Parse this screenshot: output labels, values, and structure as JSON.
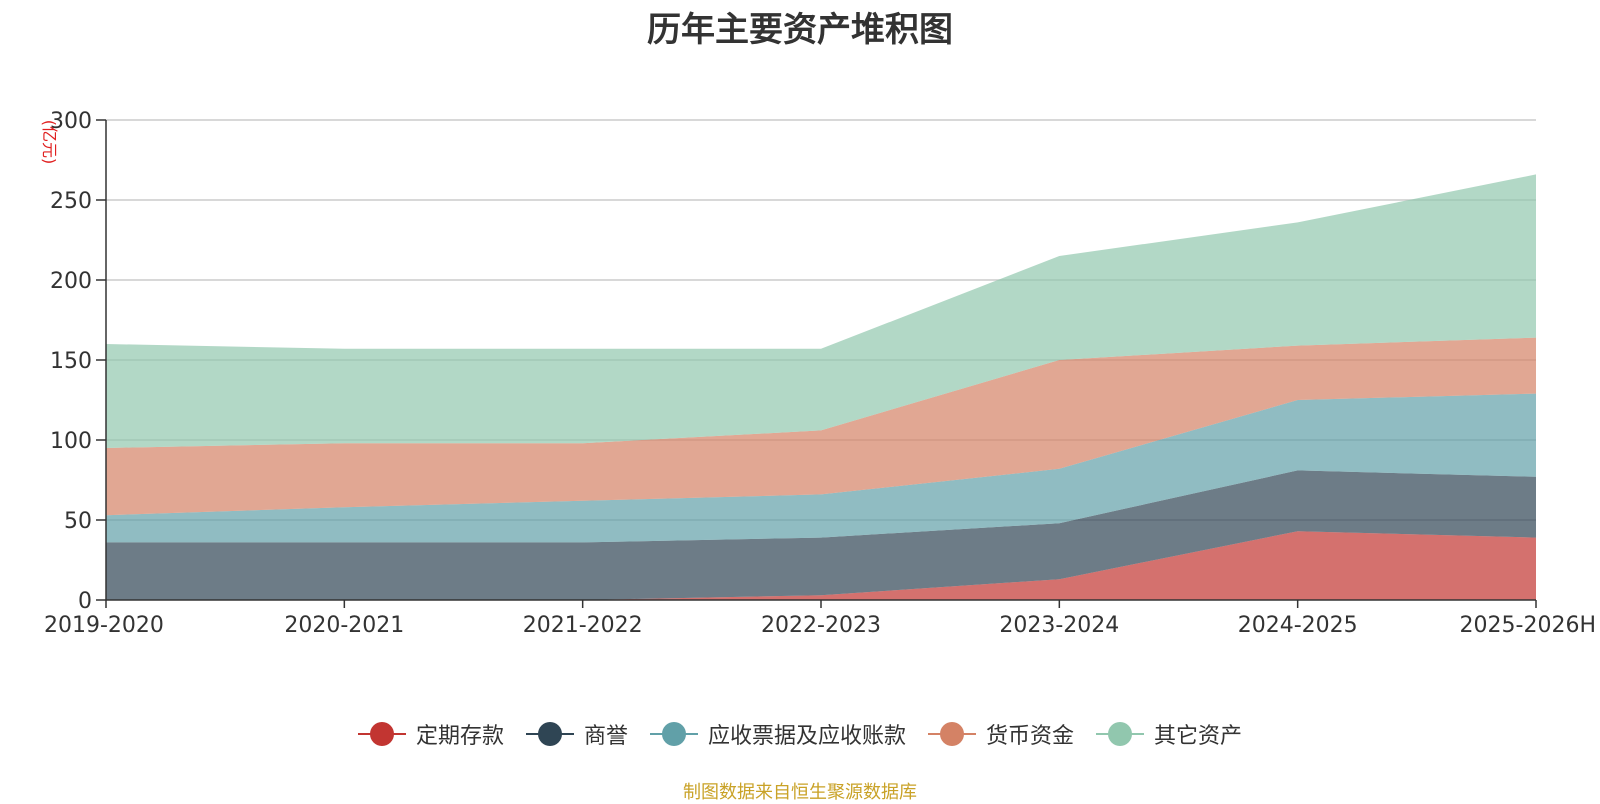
{
  "chart_data": {
    "type": "area",
    "stacked": true,
    "title": "历年主要资产堆积图",
    "unit_label": "(亿元)",
    "categories": [
      "2019-2020",
      "2020-2021",
      "2021-2022",
      "2022-2023",
      "2023-2024",
      "2024-2025",
      "2025-2026H"
    ],
    "ylim": [
      0,
      300
    ],
    "yticks": [
      0,
      50,
      100,
      150,
      200,
      250,
      300
    ],
    "grid": true,
    "legend_position": "bottom",
    "series": [
      {
        "name": "定期存款",
        "color": "#c23531",
        "values": [
          0,
          0,
          0,
          3,
          13,
          43,
          39
        ]
      },
      {
        "name": "商誉",
        "color": "#2f4554",
        "values": [
          36,
          36,
          36,
          36,
          35,
          38,
          38
        ]
      },
      {
        "name": "应收票据及应收账款",
        "color": "#61a0a8",
        "values": [
          17,
          22,
          26,
          27,
          34,
          44,
          52
        ]
      },
      {
        "name": "货币资金",
        "color": "#d48265",
        "values": [
          42,
          40,
          36,
          40,
          68,
          34,
          35
        ]
      },
      {
        "name": "其它资产",
        "color": "#91c7ae",
        "values": [
          65,
          59,
          59,
          51,
          65,
          77,
          102
        ]
      }
    ]
  },
  "footer": {
    "source": "制图数据来自恒生聚源数据库"
  }
}
